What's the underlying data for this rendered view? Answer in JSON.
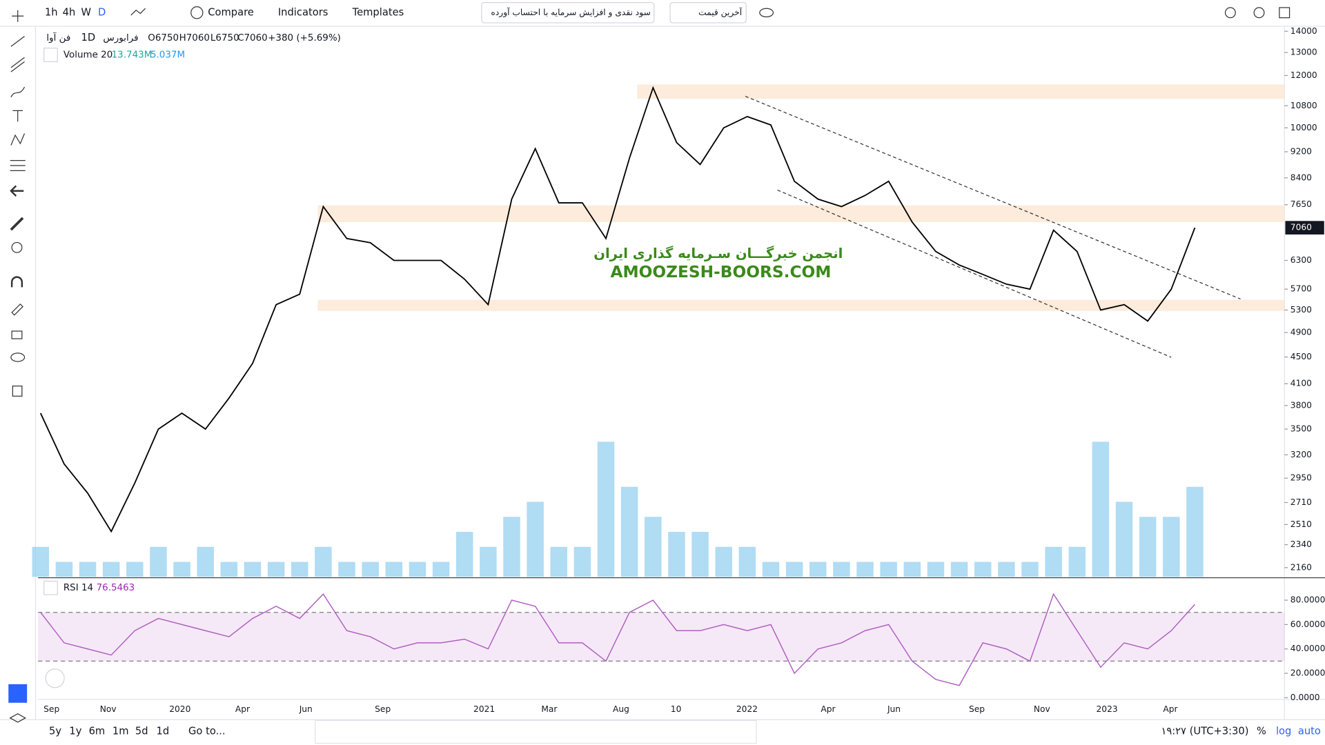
{
  "toolbar": {
    "intervals": [
      "1h",
      "4h",
      "W",
      "D"
    ],
    "compare": "Compare",
    "indicators": "Indicators",
    "templates": "Templates",
    "adjustment": "سود نقدی و افزایش سرمایه با احتساب آورده",
    "price_type": "آخرین قیمت"
  },
  "legend": {
    "symbol": "فن آوا",
    "interval": "1D",
    "exchange": "فرابورس",
    "open": "O6750",
    "high": "H7060",
    "low": "L6750",
    "close": "C7060",
    "change": "+380 (+5.69%)",
    "volume_name": "Volume 20",
    "volume_value": "13.743M",
    "volume_ma": "5.037M",
    "rsi_name": "RSI 14",
    "rsi_value": "76.5463"
  },
  "watermark": {
    "line1": "انجمن خبرگـــان سـرمایه گذاری ایران",
    "line2": "AMOOZESH-BOORS.COM"
  },
  "time_axis": {
    "labels": [
      "Sep",
      "Nov",
      "2020",
      "Apr",
      "Jun",
      "Sep",
      "2021",
      "Mar",
      "Aug",
      "10",
      "2022",
      "Apr",
      "Jun",
      "Sep",
      "Nov",
      "2023",
      "Apr"
    ]
  },
  "bottom_bar": {
    "ranges": [
      "5y",
      "1y",
      "6m",
      "1m",
      "5d",
      "1d"
    ],
    "goto": "Go to...",
    "clock": "۱۹:۲۷ (UTC+3:30)",
    "percent": "%",
    "log": "log",
    "auto": "auto"
  },
  "chart_data": [
    {
      "type": "line",
      "color": "#000000",
      "log_scale": true,
      "ylim": [
        2160,
        14000
      ],
      "yticks": [
        14000,
        13000,
        12000,
        10800,
        10000,
        9200,
        8400,
        7650,
        6300,
        5700,
        5300,
        4900,
        4500,
        4100,
        3800,
        3500,
        3200,
        2950,
        2710,
        2510,
        2340,
        2160
      ],
      "last_value": 7060,
      "values": [
        3700,
        3100,
        2800,
        2450,
        2900,
        3500,
        3700,
        3500,
        3900,
        4400,
        5400,
        5600,
        7600,
        6800,
        6700,
        6300,
        6300,
        6300,
        5900,
        5400,
        7800,
        9300,
        7700,
        7700,
        6800,
        9000,
        11500,
        9500,
        8800,
        10000,
        10400,
        10100,
        8300,
        7800,
        7600,
        7900,
        8300,
        7200,
        6500,
        6200,
        6000,
        5800,
        5700,
        7000,
        6500,
        5300,
        5400,
        5100,
        5700,
        7060
      ]
    },
    {
      "type": "bar",
      "color": "#8fcdf0",
      "values": [
        2,
        1,
        1,
        1,
        1,
        2,
        1,
        2,
        1,
        1,
        1,
        1,
        2,
        1,
        1,
        1,
        1,
        1,
        3,
        2,
        4,
        5,
        2,
        2,
        9,
        6,
        4,
        3,
        3,
        2,
        2,
        1,
        1,
        1,
        1,
        1,
        1,
        1,
        1,
        1,
        1,
        1,
        1,
        2,
        2,
        9,
        5,
        4,
        4,
        6
      ]
    },
    {
      "type": "line",
      "color": "#b05fc0",
      "ylim": [
        0,
        97
      ],
      "band_limits": [
        30,
        70
      ],
      "yticks": [
        {
          "value": 0,
          "label": "0.0000"
        },
        {
          "value": 20,
          "label": "20.0000"
        },
        {
          "value": 40,
          "label": "40.0000"
        },
        {
          "value": 60,
          "label": "60.0000"
        },
        {
          "value": 80,
          "label": "80.0000"
        }
      ],
      "values": [
        70,
        45,
        40,
        35,
        55,
        65,
        60,
        55,
        50,
        65,
        75,
        65,
        85,
        55,
        50,
        40,
        45,
        45,
        48,
        40,
        80,
        75,
        45,
        45,
        30,
        70,
        80,
        55,
        55,
        60,
        55,
        60,
        20,
        40,
        45,
        55,
        60,
        30,
        15,
        10,
        45,
        40,
        30,
        85,
        55,
        25,
        45,
        40,
        55,
        76.5463
      ]
    }
  ]
}
